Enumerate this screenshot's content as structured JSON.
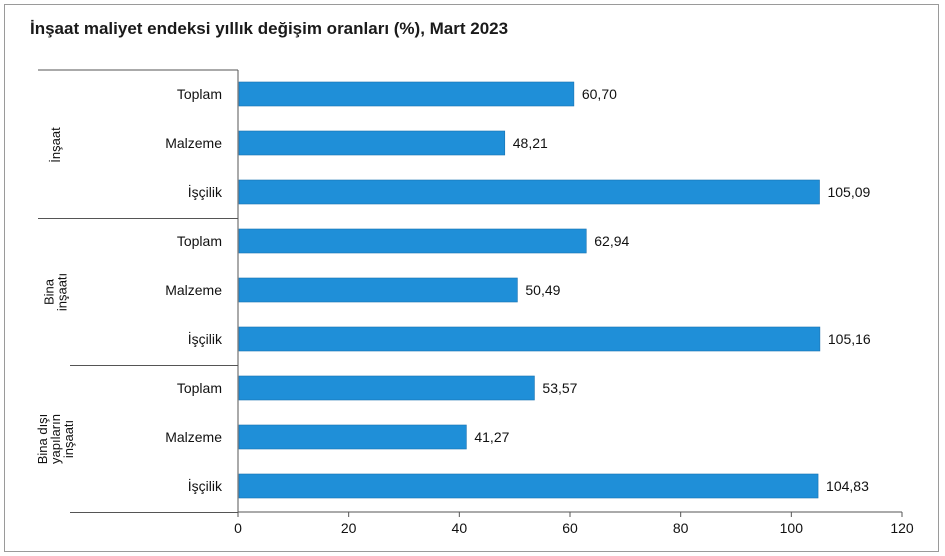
{
  "chart_data": {
    "type": "bar",
    "orientation": "horizontal",
    "title": "İnşaat maliyet endeksi yıllık değişim oranları (%), Mart 2023",
    "xlim": [
      0,
      120
    ],
    "xticks": [
      0,
      20,
      40,
      60,
      80,
      100,
      120
    ],
    "grid": false,
    "bar_color": "#1f8fd8",
    "groups": [
      {
        "label_lines": [
          "İnşaat"
        ],
        "categories": [
          "Toplam",
          "Malzeme",
          "İşçilik"
        ],
        "values": [
          60.7,
          48.21,
          105.09
        ],
        "value_labels": [
          "60,70",
          "48,21",
          "105,09"
        ]
      },
      {
        "label_lines": [
          "Bina",
          "inşaatı"
        ],
        "categories": [
          "Toplam",
          "Malzeme",
          "İşçilik"
        ],
        "values": [
          62.94,
          50.49,
          105.16
        ],
        "value_labels": [
          "62,94",
          "50,49",
          "105,16"
        ]
      },
      {
        "label_lines": [
          "Bina dışı",
          "yapıların",
          "inşaatı"
        ],
        "categories": [
          "Toplam",
          "Malzeme",
          "İşçilik"
        ],
        "values": [
          53.57,
          41.27,
          104.83
        ],
        "value_labels": [
          "53,57",
          "41,27",
          "104,83"
        ]
      }
    ]
  }
}
